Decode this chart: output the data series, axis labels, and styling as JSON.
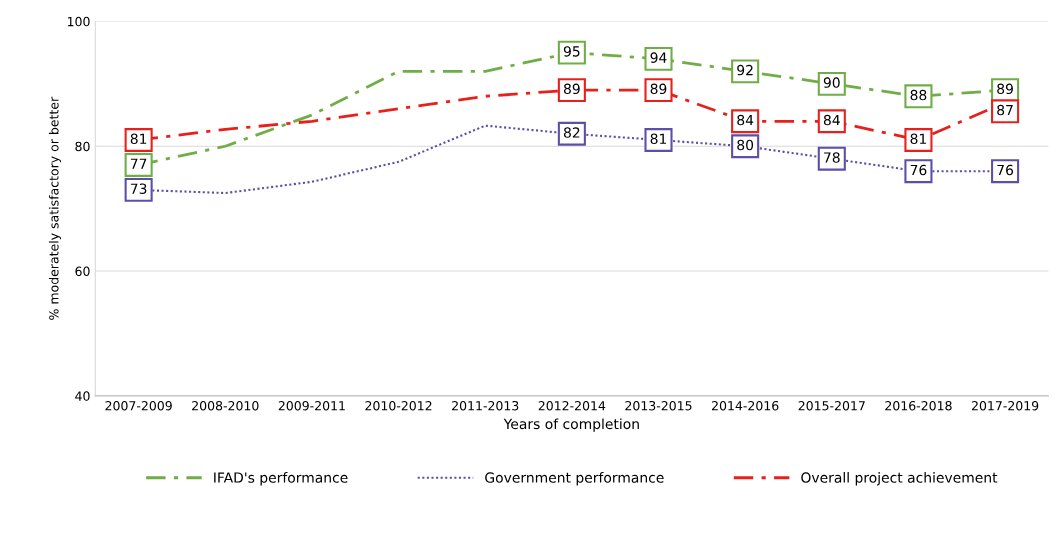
{
  "chart_data": {
    "type": "line",
    "xlabel": "Years of completion",
    "ylabel": "% moderately satisfactory or better",
    "categories": [
      "2007-2009",
      "2008-2010",
      "2009-2011",
      "2010-2012",
      "2011-2013",
      "2012-2014",
      "2013-2015",
      "2014-2016",
      "2015-2017",
      "2016-2018",
      "2017-2019"
    ],
    "series": [
      {
        "name": "IFAD's performance",
        "color": "#70ad47",
        "line_style": "dashdot",
        "values": [
          77,
          80,
          85,
          92,
          92,
          95,
          94,
          92,
          90,
          88,
          89
        ],
        "value_labels": [
          "77",
          null,
          null,
          null,
          null,
          "95",
          "94",
          "92",
          "90",
          "88",
          "89"
        ]
      },
      {
        "name": "Government performance",
        "color": "#5b4fa8",
        "line_style": "dotted",
        "values": [
          73,
          72.5,
          74.3,
          77.5,
          83.3,
          82,
          81,
          80,
          78,
          76,
          76
        ],
        "value_labels": [
          "73",
          null,
          null,
          null,
          null,
          "82",
          "81",
          "80",
          "78",
          "76",
          "76"
        ]
      },
      {
        "name": "Overall project achievement",
        "color": "#e8201c",
        "line_style": "dashdot",
        "values": [
          81,
          82.7,
          84,
          86,
          88,
          89,
          89,
          84,
          84,
          81,
          87
        ],
        "value_labels": [
          "81",
          null,
          null,
          null,
          null,
          "89",
          "89",
          "84",
          "84",
          "81",
          "87"
        ]
      }
    ],
    "ylim": [
      40,
      100
    ],
    "yticks": [
      40,
      60,
      80,
      100
    ],
    "grid": "y",
    "legend": "bottom"
  }
}
